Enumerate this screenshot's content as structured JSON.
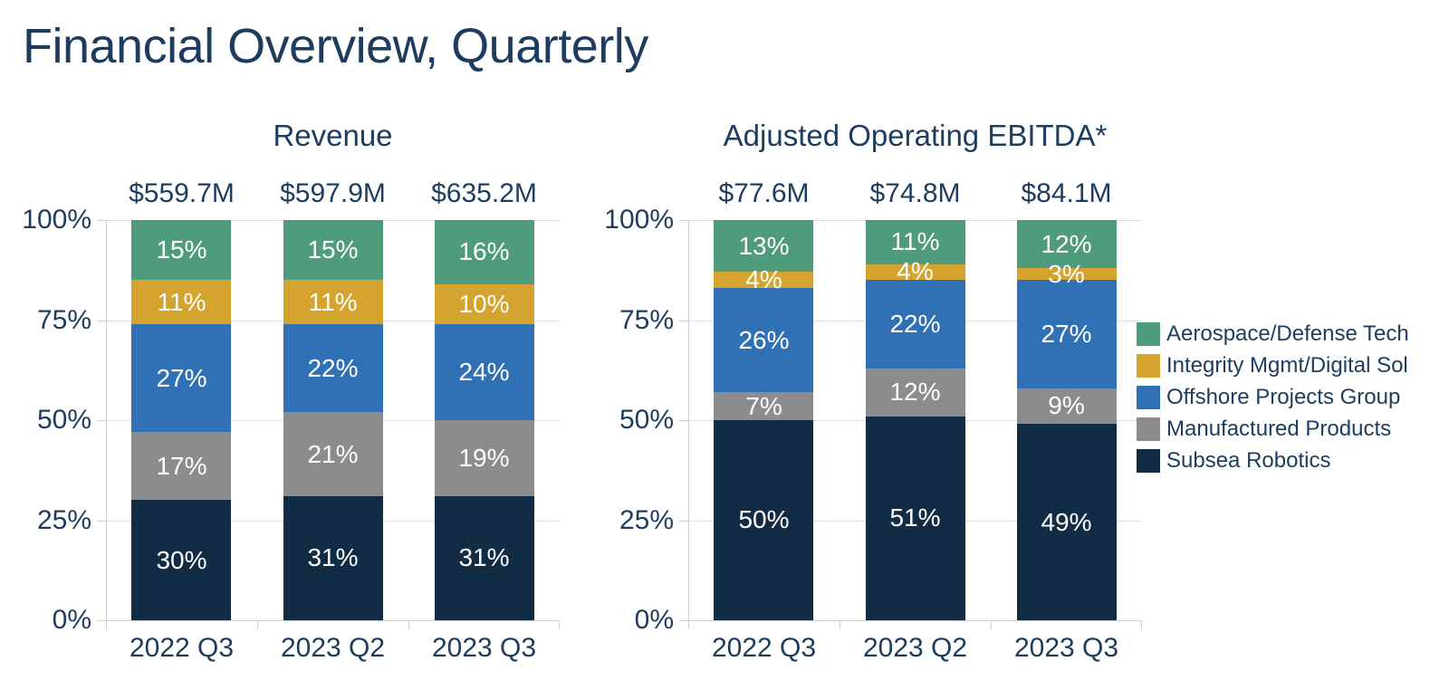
{
  "title": "Financial Overview, Quarterly",
  "colors": {
    "background": "#ffffff",
    "text": "#1d3c5e",
    "grid": "#dbe0e7",
    "axis": "#c8d0d9",
    "bar_label": "#ffffff"
  },
  "legend": {
    "position": "right",
    "items": [
      {
        "label": "Aerospace/Defense Tech",
        "color": "#4e9c7b"
      },
      {
        "label": "Integrity Mgmt/Digital Sol",
        "color": "#d4a42f"
      },
      {
        "label": "Offshore Projects Group",
        "color": "#3070b4"
      },
      {
        "label": "Manufactured Products",
        "color": "#8b8c8e"
      },
      {
        "label": "Subsea Robotics",
        "color": "#132c45"
      }
    ]
  },
  "chart_data": [
    {
      "type": "bar",
      "stacked": true,
      "title": "Revenue",
      "categories": [
        "2022 Q3",
        "2023 Q2",
        "2023 Q3"
      ],
      "bar_totals": [
        "$559.7M",
        "$597.9M",
        "$635.2M"
      ],
      "ylim": [
        0,
        100
      ],
      "yticks": [
        100,
        75,
        50,
        25,
        0
      ],
      "ytick_suffix": "%",
      "grid": true,
      "segment_label_suffix": "%",
      "series": [
        {
          "name": "Aerospace/Defense Tech",
          "color": "#4e9c7b",
          "values": [
            15,
            15,
            16
          ]
        },
        {
          "name": "Integrity Mgmt/Digital Sol",
          "color": "#d4a42f",
          "values": [
            11,
            11,
            10
          ]
        },
        {
          "name": "Offshore Projects Group",
          "color": "#3070b4",
          "values": [
            27,
            22,
            24
          ]
        },
        {
          "name": "Manufactured Products",
          "color": "#8b8c8e",
          "values": [
            17,
            21,
            19
          ]
        },
        {
          "name": "Subsea Robotics",
          "color": "#132c45",
          "values": [
            30,
            31,
            31
          ]
        }
      ]
    },
    {
      "type": "bar",
      "stacked": true,
      "title": "Adjusted Operating EBITDA*",
      "categories": [
        "2022 Q3",
        "2023 Q2",
        "2023 Q3"
      ],
      "bar_totals": [
        "$77.6M",
        "$74.8M",
        "$84.1M"
      ],
      "ylim": [
        0,
        100
      ],
      "yticks": [
        100,
        75,
        50,
        25,
        0
      ],
      "ytick_suffix": "%",
      "grid": true,
      "segment_label_suffix": "%",
      "series": [
        {
          "name": "Aerospace/Defense Tech",
          "color": "#4e9c7b",
          "values": [
            13,
            11,
            12
          ]
        },
        {
          "name": "Integrity Mgmt/Digital Sol",
          "color": "#d4a42f",
          "values": [
            4,
            4,
            3
          ]
        },
        {
          "name": "Offshore Projects Group",
          "color": "#3070b4",
          "values": [
            26,
            22,
            27
          ]
        },
        {
          "name": "Manufactured Products",
          "color": "#8b8c8e",
          "values": [
            7,
            12,
            9
          ]
        },
        {
          "name": "Subsea Robotics",
          "color": "#132c45",
          "values": [
            50,
            51,
            49
          ]
        }
      ]
    }
  ]
}
